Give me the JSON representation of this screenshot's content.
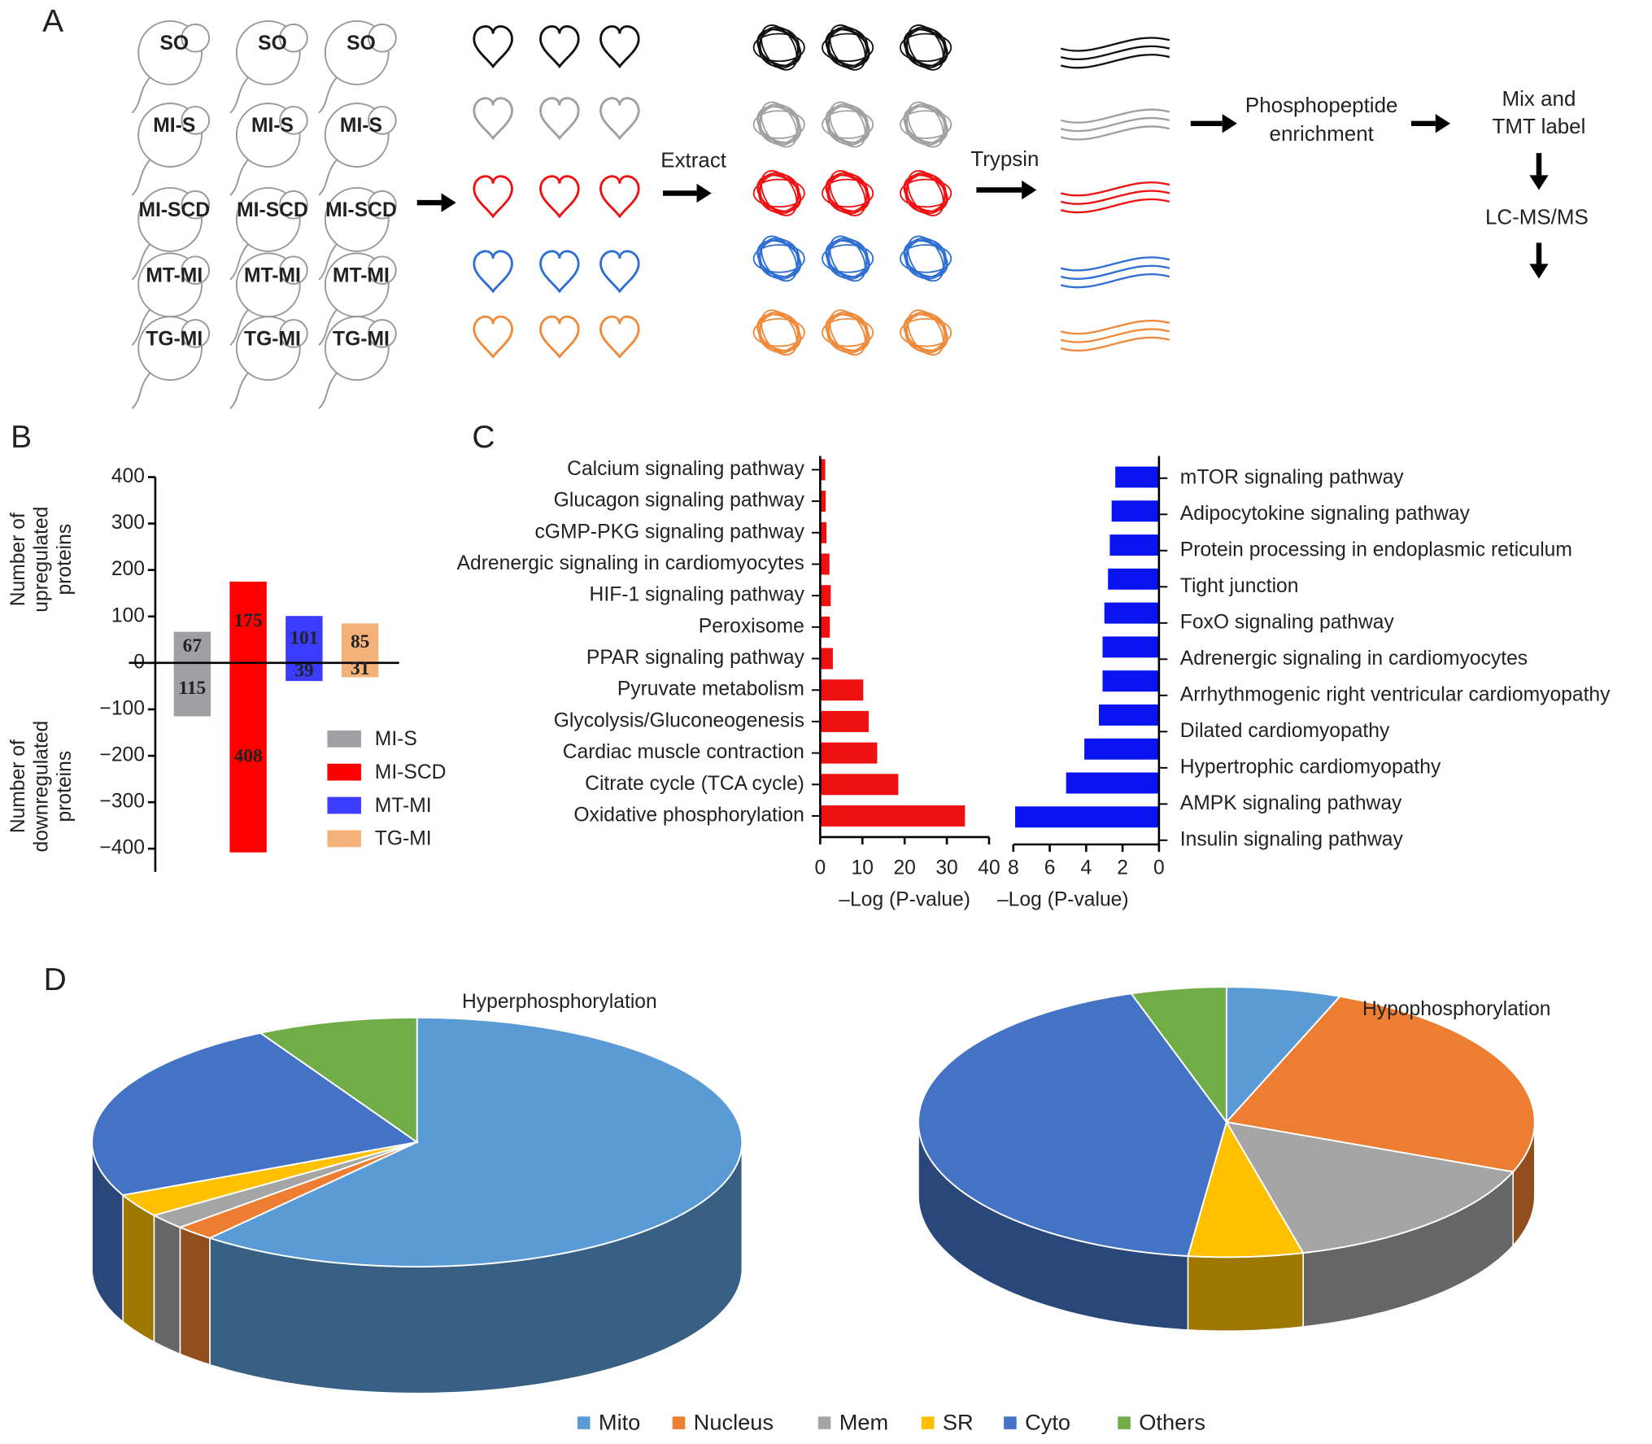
{
  "panel_labels": [
    "A",
    "B",
    "C",
    "D"
  ],
  "workflow": {
    "groups": [
      {
        "label": "SO",
        "color": "#111111"
      },
      {
        "label": "MI-S",
        "color": "#a0a0a0"
      },
      {
        "label": "MI-SCD",
        "color": "#ee1111"
      },
      {
        "label": "MT-MI",
        "color": "#2e6fd1"
      },
      {
        "label": "TG-MI",
        "color": "#ee8a3a"
      }
    ],
    "steps": {
      "extract": "Extract",
      "trypsin": "Trypsin",
      "enrichment": [
        "Phosphopeptide",
        "enrichment"
      ],
      "mix": [
        "Mix and",
        "TMT label"
      ],
      "ms": "LC-MS/MS"
    }
  },
  "chart_data": [
    {
      "type": "bar",
      "categories": [
        "MI-S",
        "MI-SCD",
        "MT-MI",
        "TG-MI"
      ],
      "colors": [
        "#a0a0a4",
        "#ff0000",
        "#3c3cff",
        "#f4b27a"
      ],
      "series": [
        {
          "values": [
            67,
            175,
            101,
            85
          ]
        },
        {
          "values": [
            -115,
            -408,
            -39,
            -31
          ],
          "value_labels": [
            "115",
            "408",
            "39",
            "31"
          ]
        }
      ],
      "y_label_upper": [
        "Number of",
        "upregulated",
        "proteins"
      ],
      "y_label_lower": [
        "Number of",
        "downregulated",
        "proteins"
      ],
      "ylim": [
        -450,
        400
      ],
      "yticks": [
        400,
        300,
        200,
        100,
        0,
        {
          "value": -100,
          "label": "−100"
        },
        {
          "value": -200,
          "label": "−200"
        },
        {
          "value": -300,
          "label": "−300"
        },
        {
          "value": -400,
          "label": "−400"
        }
      ]
    },
    {
      "type": "barh",
      "categories": [
        "Calcium signaling pathway",
        "Glucagon signaling pathway",
        "cGMP-PKG signaling pathway",
        "Adrenergic signaling in cardiomyocytes",
        "HIF-1 signaling pathway",
        "Peroxisome",
        "PPAR signaling pathway",
        "Pyruvate metabolism",
        "Glycolysis/Gluconeogenesis",
        "Cardiac muscle contraction",
        "Citrate cycle (TCA cycle)",
        "Oxidative phosphorylation"
      ],
      "values": [
        1.2,
        1.3,
        1.5,
        2.2,
        2.5,
        2.3,
        3,
        10.2,
        11.5,
        13.5,
        18.5,
        34.3
      ],
      "color": "#ee1111",
      "xlabel": "–Log (P-value)",
      "xlim": [
        0,
        40
      ],
      "xticks": [
        0,
        10,
        20,
        30,
        40
      ],
      "reversed": false
    },
    {
      "type": "barh",
      "categories": [
        "mTOR signaling pathway",
        "Adipocytokine signaling pathway",
        "Protein processing in endoplasmic reticulum",
        "Tight junction",
        "FoxO signaling pathway",
        "Adrenergic signaling in cardiomyocytes",
        "Arrhythmogenic right ventricular cardiomyopathy",
        "Dilated cardiomyopathy",
        "Hypertrophic cardiomyopathy",
        "AMPK signaling pathway",
        "Insulin signaling pathway"
      ],
      "values": [
        2.4,
        2.6,
        2.7,
        2.8,
        3.0,
        3.1,
        3.1,
        3.3,
        4.1,
        5.1,
        7.9
      ],
      "color": "#0a14f0",
      "xlabel": "–Log (P-value)",
      "xlim": [
        0,
        8
      ],
      "xticks": [
        8,
        6,
        4,
        2,
        0
      ],
      "reversed": true
    },
    {
      "type": "pie",
      "categories": [
        "Mito",
        "Nucleus",
        "Mem",
        "SR",
        "Cyto",
        "Others"
      ],
      "colors": [
        "#5b9bd5",
        "#ed7d31",
        "#a5a5a5",
        "#ffc000",
        "#4472c4",
        "#70ad47"
      ],
      "series": [
        {
          "name": "Hyperphosphorylation",
          "values": [
            61,
            2,
            2,
            3,
            24,
            8
          ]
        },
        {
          "name": "Hypophosphorylation",
          "values": [
            6,
            25,
            15,
            6,
            43,
            5
          ]
        }
      ]
    }
  ]
}
